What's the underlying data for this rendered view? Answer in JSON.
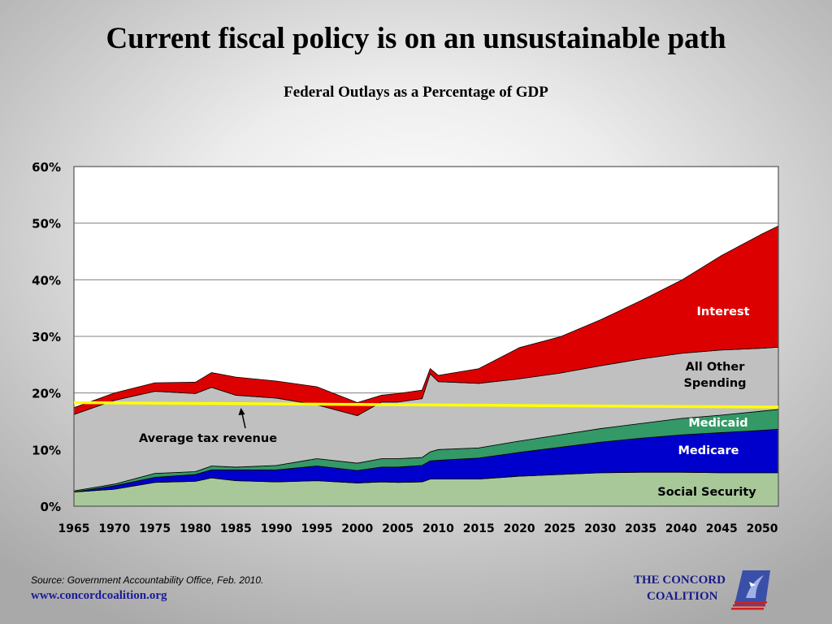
{
  "title": "Current fiscal policy is on an unsustainable path",
  "subtitle": "Federal Outlays as a Percentage of GDP",
  "source": "Source: Government Accountability Office, Feb. 2010.",
  "website": "www.concordcoalition.org",
  "logo": {
    "line1": "THE CONCORD",
    "line2": "COALITION"
  },
  "colors": {
    "social_security": "#a8c89a",
    "medicare": "#0000cc",
    "medicaid": "#339966",
    "all_other": "#c0c0c0",
    "interest": "#dd0000",
    "tax_line": "#ffff00"
  },
  "chart_data": {
    "type": "area",
    "stacked": true,
    "title": "Federal Outlays as a Percentage of GDP",
    "x": [
      1965,
      1970,
      1975,
      1980,
      1982,
      1985,
      1990,
      1995,
      2000,
      2003,
      2005,
      2008,
      2009,
      2010,
      2015,
      2020,
      2025,
      2030,
      2035,
      2040,
      2045,
      2050,
      2052
    ],
    "xticks": [
      1965,
      1970,
      1975,
      1980,
      1985,
      1990,
      1995,
      2000,
      2005,
      2010,
      2015,
      2020,
      2025,
      2030,
      2035,
      2040,
      2045,
      2050
    ],
    "xtick_labels": [
      "1965",
      "1970",
      "1975",
      "1980",
      "1985",
      "1990",
      "1995",
      "2000",
      "2005",
      "2010",
      "2015",
      "2020",
      "2025",
      "2030",
      "2035",
      "2040",
      "2045",
      "2050"
    ],
    "ylim": [
      0,
      60
    ],
    "yticks": [
      0,
      10,
      20,
      30,
      40,
      50,
      60
    ],
    "ytick_labels": [
      "0%",
      "10%",
      "20%",
      "30%",
      "40%",
      "50%",
      "60%"
    ],
    "grid": true,
    "series": [
      {
        "name": "Social Security",
        "label_color": "#000000",
        "values": [
          2.5,
          3.0,
          4.2,
          4.4,
          5.0,
          4.5,
          4.3,
          4.5,
          4.1,
          4.3,
          4.2,
          4.3,
          4.8,
          4.8,
          4.8,
          5.3,
          5.6,
          5.9,
          6.0,
          6.0,
          5.9,
          5.9,
          5.9
        ]
      },
      {
        "name": "Medicare",
        "label_color": "#ffffff",
        "values": [
          0.0,
          0.6,
          0.9,
          1.2,
          1.4,
          1.9,
          2.1,
          2.6,
          2.2,
          2.6,
          2.7,
          2.9,
          3.2,
          3.3,
          3.7,
          4.2,
          4.8,
          5.4,
          6.0,
          6.6,
          7.1,
          7.5,
          7.7
        ]
      },
      {
        "name": "Medicaid",
        "label_color": "#ffffff",
        "values": [
          0.2,
          0.3,
          0.7,
          0.5,
          0.7,
          0.5,
          0.8,
          1.3,
          1.3,
          1.5,
          1.5,
          1.4,
          1.6,
          1.9,
          1.8,
          2.0,
          2.2,
          2.4,
          2.6,
          2.9,
          3.1,
          3.4,
          3.5
        ]
      },
      {
        "name": "All Other\nSpending",
        "label_color": "#000000",
        "values": [
          13.5,
          14.8,
          14.5,
          13.8,
          13.9,
          12.7,
          11.9,
          9.5,
          8.4,
          10.0,
          10.0,
          10.4,
          13.8,
          12.0,
          11.4,
          11.0,
          10.9,
          11.1,
          11.4,
          11.5,
          11.5,
          11.1,
          11.0
        ]
      },
      {
        "name": "Interest",
        "label_color": "#ffffff",
        "values": [
          1.2,
          1.3,
          1.5,
          2.0,
          2.6,
          3.2,
          3.0,
          3.2,
          2.3,
          1.2,
          1.5,
          1.5,
          0.9,
          1.1,
          2.6,
          5.5,
          6.4,
          8.1,
          10.3,
          12.9,
          16.7,
          20.2,
          21.4
        ]
      }
    ],
    "tax_line": {
      "label": "Average tax revenue",
      "x": [
        1965,
        2052
      ],
      "y": [
        18.3,
        17.5
      ]
    }
  }
}
